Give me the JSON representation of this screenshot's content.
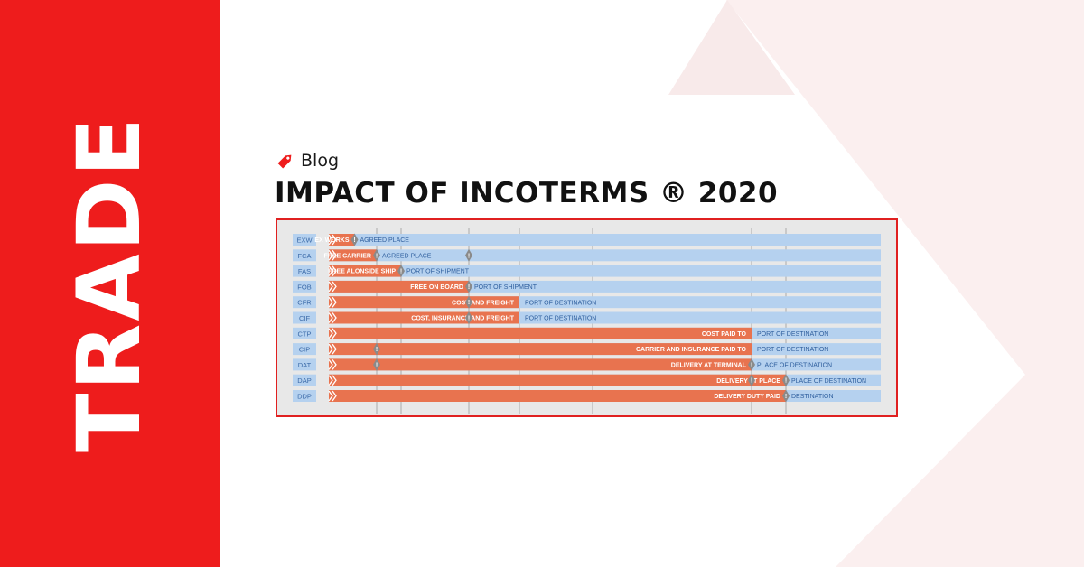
{
  "brand": {
    "side_word": "TRADE",
    "accent_color": "#ee1c1c",
    "decor_color": "#fbefef"
  },
  "post": {
    "category_icon": "tag-icon",
    "category": "Blog",
    "title": "IMPACT OF INCOTERMS ® 2020"
  },
  "chart_data": {
    "type": "diagram",
    "description_colors": {
      "seller": "#e8734f",
      "buyer": "#b5d1ef",
      "marker": "#8a8a8a"
    },
    "stages": 7,
    "rows": [
      {
        "code": "EXW",
        "seller_label": "EX WORKS",
        "buyer_label": "AGREED PLACE",
        "split_stage": 0.5,
        "markers": [
          0.5
        ]
      },
      {
        "code": "FCA",
        "seller_label": "FREE CARRIER",
        "buyer_label": "AGREED PLACE",
        "split_stage": 1,
        "markers": [
          1,
          3
        ]
      },
      {
        "code": "FAS",
        "seller_label": "FREE ALONSIDE SHIP",
        "buyer_label": "PORT OF SHIPMENT",
        "split_stage": 2,
        "markers": [
          2
        ]
      },
      {
        "code": "FOB",
        "seller_label": "FREE ON BOARD",
        "buyer_label": "PORT OF SHIPMENT",
        "split_stage": 3,
        "markers": [
          3
        ]
      },
      {
        "code": "CFR",
        "seller_label": "COST AND FREIGHT",
        "buyer_label": "PORT OF DESTINATION",
        "split_stage": 4,
        "markers": [
          3
        ]
      },
      {
        "code": "CIF",
        "seller_label": "COST, INSURANCE AND FREIGHT",
        "buyer_label": "PORT OF DESTINATION",
        "split_stage": 4,
        "markers": [
          3
        ]
      },
      {
        "code": "CTP",
        "seller_label": "COST PAID TO",
        "buyer_label": "PORT OF DESTINATION",
        "split_stage": 6,
        "markers": []
      },
      {
        "code": "CIP",
        "seller_label": "CARRIER AND INSURANCE PAID TO",
        "buyer_label": "PORT OF DESTINATION",
        "split_stage": 6,
        "markers": [
          1
        ]
      },
      {
        "code": "DAT",
        "seller_label": "DELIVERY AT TERMINAL",
        "buyer_label": "PLACE OF DESTINATION",
        "split_stage": 6,
        "markers": [
          1,
          6
        ]
      },
      {
        "code": "DAP",
        "seller_label": "DELIVERY AT PLACE",
        "buyer_label": "PLACE OF DESTINATION",
        "split_stage": 7,
        "markers": [
          6,
          7
        ]
      },
      {
        "code": "DDP",
        "seller_label": "DELIVERY DUTY PAID",
        "buyer_label": "DESTINATION",
        "split_stage": 7,
        "markers": [
          7
        ]
      }
    ]
  }
}
